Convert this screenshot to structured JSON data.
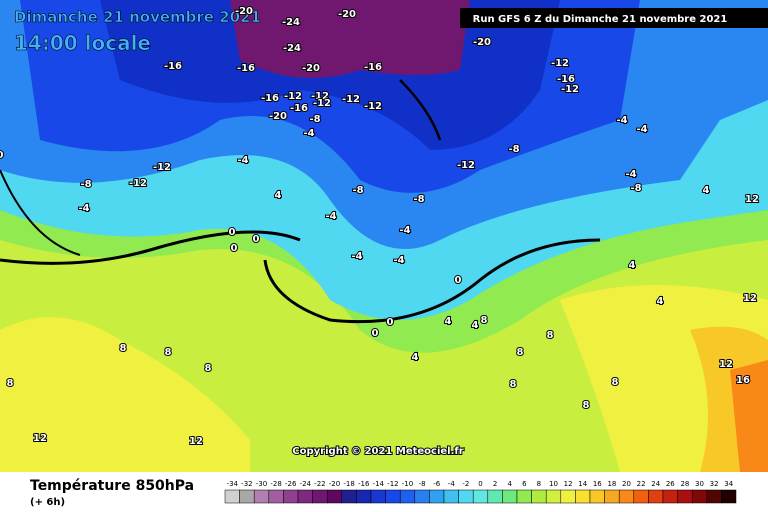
{
  "header": {
    "date": "Dimanche 21 novembre 2021",
    "time": "14:00 locale",
    "run": "Run GFS 6 Z du Dimanche 21 novembre 2021",
    "copyright": "Copyright © 2021 Meteociel.fr"
  },
  "footer": {
    "title": "Température 850hPa",
    "step": "(+ 6h)"
  },
  "legend": {
    "values": [
      -34,
      -32,
      -30,
      -28,
      -26,
      -24,
      -22,
      -20,
      -18,
      -16,
      -14,
      -12,
      -10,
      -8,
      -6,
      -4,
      -2,
      0,
      2,
      4,
      6,
      8,
      10,
      12,
      14,
      16,
      18,
      20,
      22,
      24,
      26,
      28,
      30,
      32,
      34
    ],
    "colors": [
      "#d0d0d0",
      "#a8a8a8",
      "#b080b0",
      "#a060a0",
      "#904090",
      "#802880",
      "#701870",
      "#600860",
      "#202090",
      "#1828b0",
      "#1838d0",
      "#1848e8",
      "#2060f0",
      "#2880f0",
      "#30a0f0",
      "#40c0f0",
      "#50d8f0",
      "#60e8e0",
      "#60e8b0",
      "#70e880",
      "#90ea50",
      "#b0ec40",
      "#d0f040",
      "#f0f040",
      "#f8e030",
      "#f8c828",
      "#f8a820",
      "#f88818",
      "#f06010",
      "#e04010",
      "#c82010",
      "#a81010",
      "#800808",
      "#500404",
      "#200000"
    ]
  },
  "map_labels": [
    "-20",
    "-24",
    "-20",
    "-16",
    "-16",
    "-20",
    "-24",
    "-16",
    "-12",
    "-16",
    "-20",
    "-12",
    "-12",
    "-12",
    "-8",
    "-4",
    "-12",
    "-16",
    "-12",
    "-12",
    "-16",
    "-20",
    "-8",
    "-4",
    "-12",
    "-12",
    "-4",
    "-4",
    "-8",
    "-8",
    "-12",
    "-8",
    "-8",
    "-4",
    "-4",
    "0",
    "0",
    "0",
    "4",
    "-4",
    "-4",
    "-4",
    "0",
    "-4",
    "0",
    "4",
    "4",
    "4",
    "4",
    "8",
    "8",
    "8",
    "8",
    "8",
    "8",
    "8",
    "12",
    "12",
    "16",
    "12",
    "12",
    "4",
    "0",
    "0",
    "4",
    "8",
    "8",
    "8",
    "12"
  ]
}
